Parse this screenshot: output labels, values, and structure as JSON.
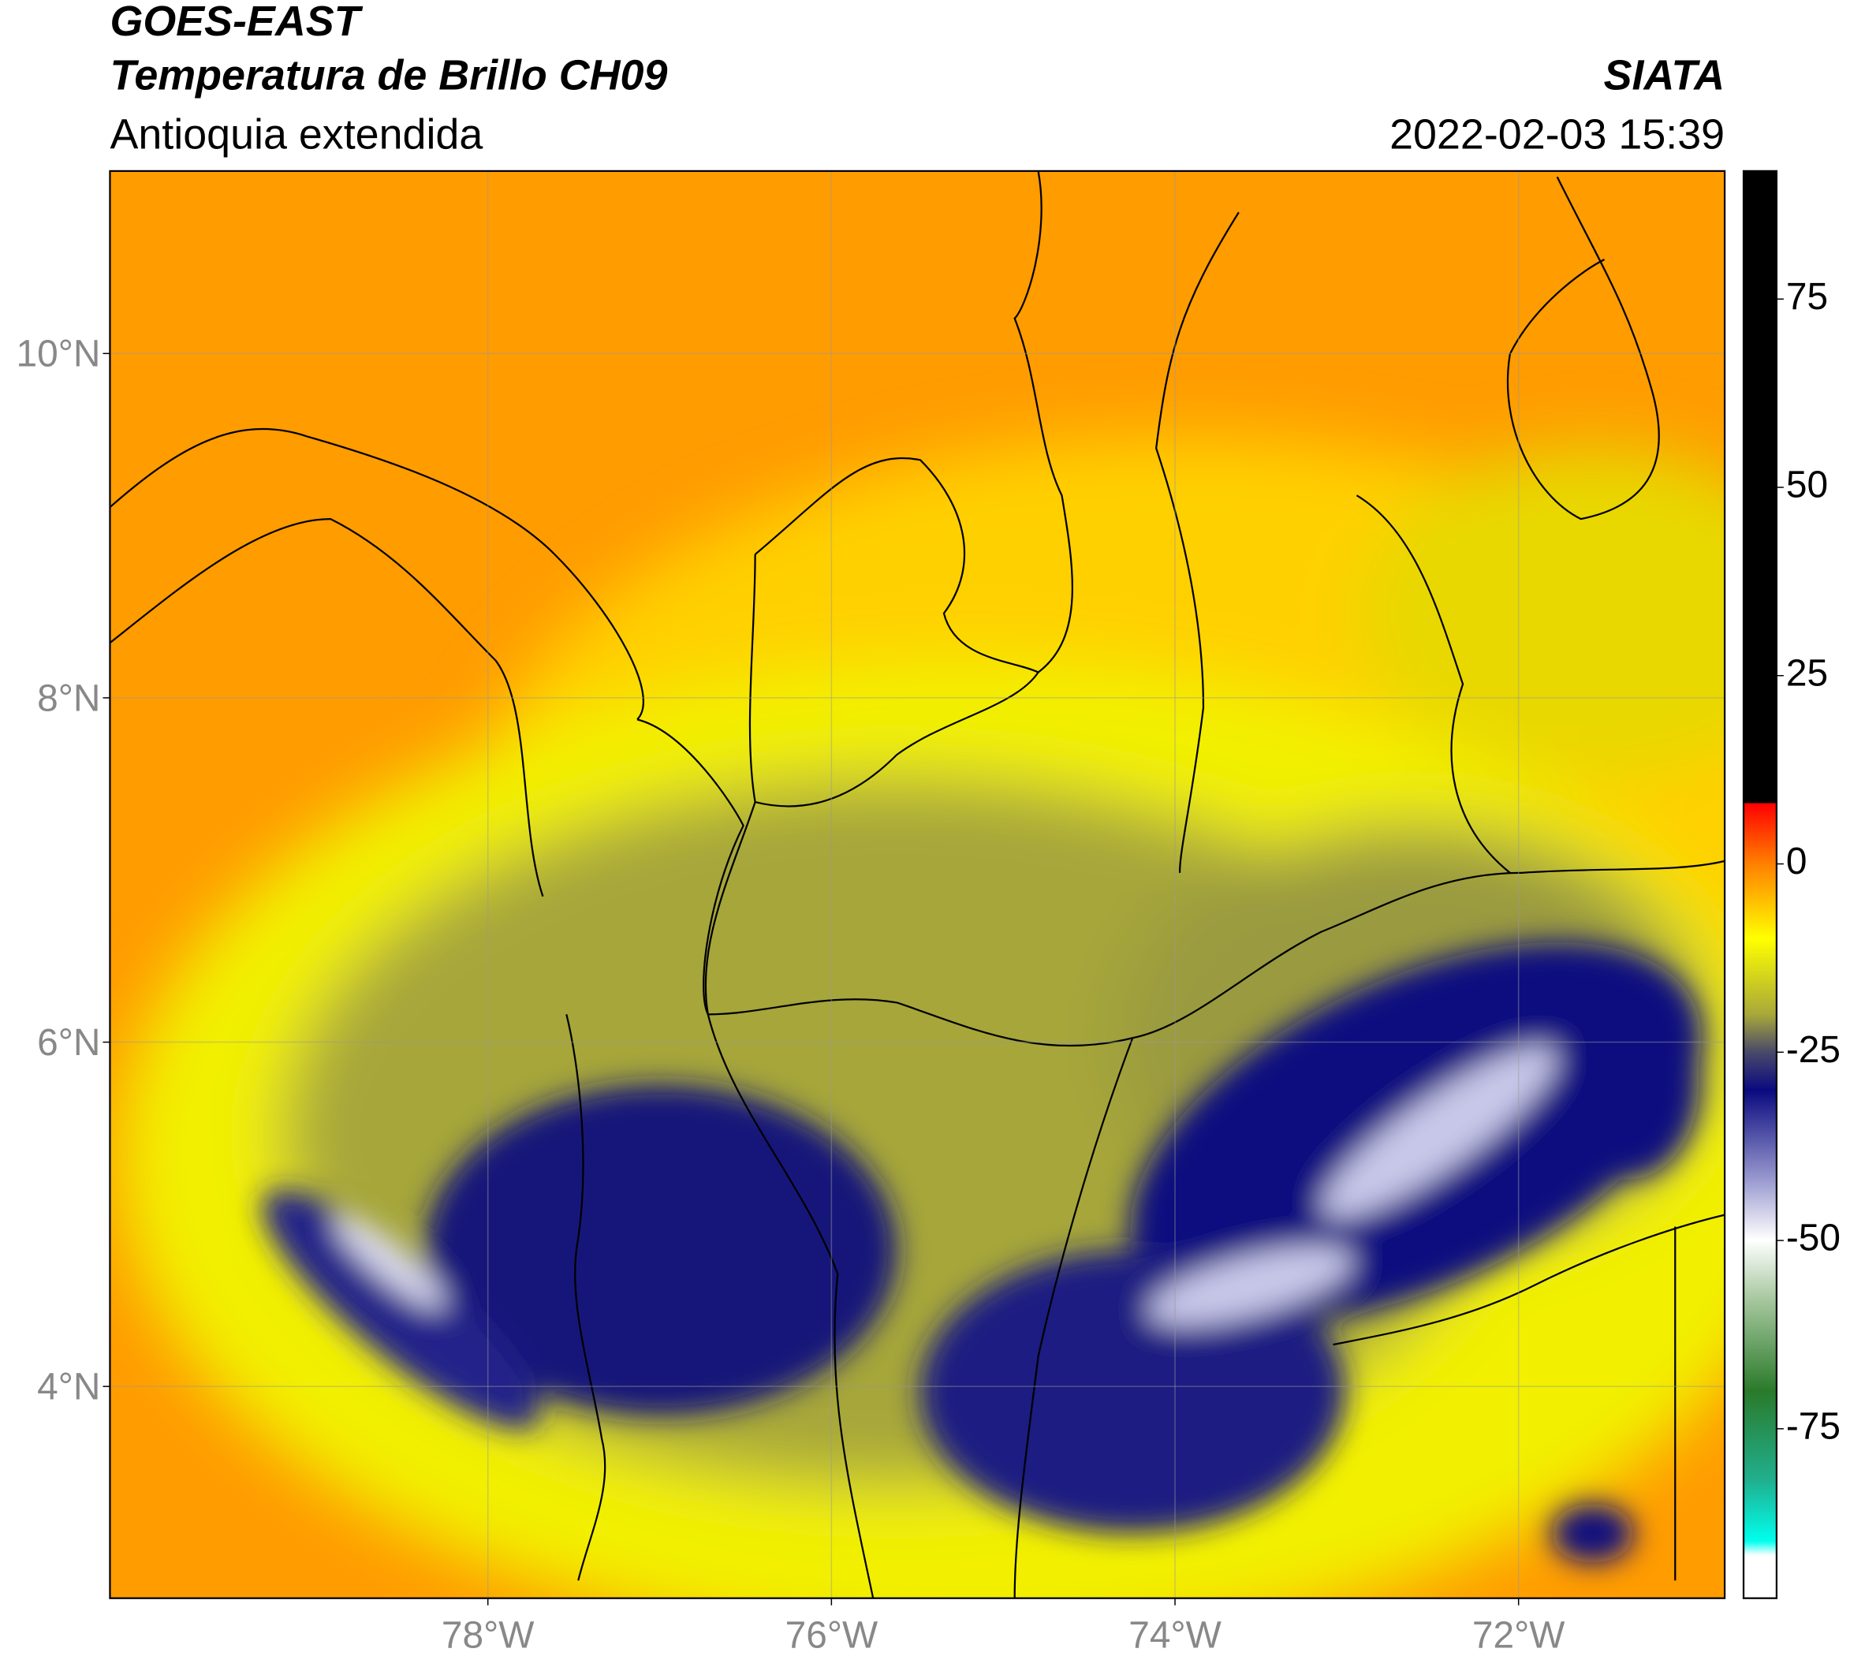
{
  "header": {
    "title": "GOES-EAST",
    "subtitle": "Temperatura de Brillo CH09",
    "region": "Antioquia extendida",
    "source": "SIATA",
    "datetime": "2022-02-03 15:39"
  },
  "chart_data": {
    "type": "map",
    "xlim": [
      -80.2,
      -70.8
    ],
    "ylim": [
      2.77,
      11.06
    ],
    "xticks": [
      {
        "value": -78,
        "label": "78°W"
      },
      {
        "value": -76,
        "label": "76°W"
      },
      {
        "value": -74,
        "label": "74°W"
      },
      {
        "value": -72,
        "label": "72°W"
      }
    ],
    "yticks": [
      {
        "value": 4,
        "label": "4°N"
      },
      {
        "value": 6,
        "label": "6°N"
      },
      {
        "value": 8,
        "label": "8°N"
      },
      {
        "value": 10,
        "label": "10°N"
      }
    ],
    "grid": true,
    "colorbar": {
      "lim": [
        -97.5,
        92
      ],
      "ticks": [
        75,
        50,
        25,
        0,
        -25,
        -50,
        -75
      ]
    }
  }
}
